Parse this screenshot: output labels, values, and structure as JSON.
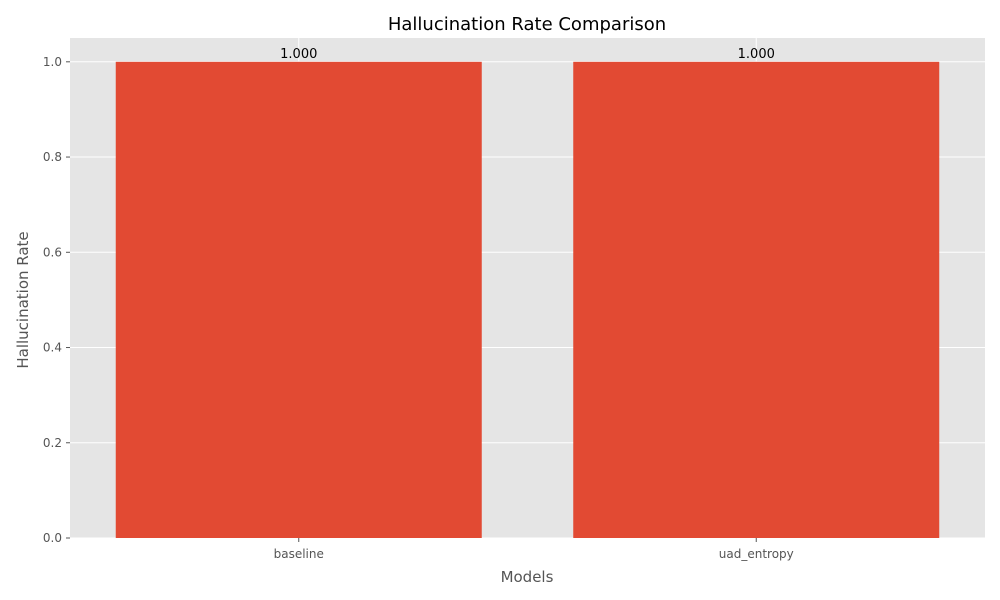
{
  "chart_data": {
    "type": "bar",
    "title": "Hallucination Rate Comparison",
    "xlabel": "Models",
    "ylabel": "Hallucination Rate",
    "categories": [
      "baseline",
      "uad_entropy"
    ],
    "values": [
      1.0,
      1.0
    ],
    "value_labels": [
      "1.000",
      "1.000"
    ],
    "ylim": [
      0,
      1.05
    ],
    "yticks": [
      0.0,
      0.2,
      0.4,
      0.6,
      0.8,
      1.0
    ],
    "ytick_labels": [
      "0.0",
      "0.2",
      "0.4",
      "0.6",
      "0.8",
      "1.0"
    ],
    "grid": true,
    "legend": "none",
    "colors": {
      "bar": "#E24A33",
      "plot_background": "#E5E5E5",
      "grid": "#FFFFFF",
      "tick_mark": "#555555"
    }
  }
}
